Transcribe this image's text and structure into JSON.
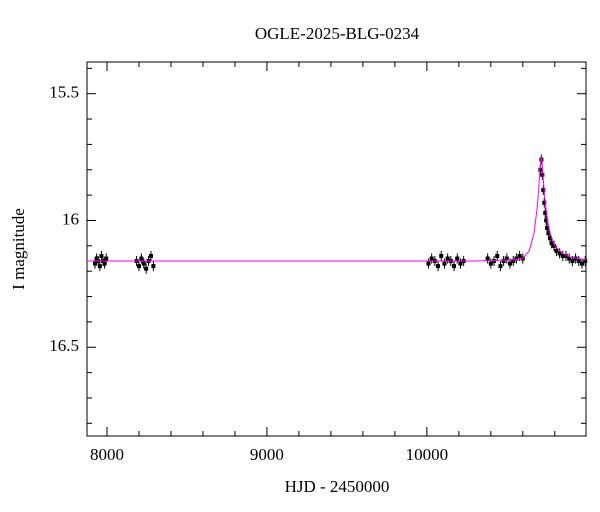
{
  "chart_data": {
    "type": "errorscatter",
    "title": "OGLE-2025-BLG-0234",
    "x_label": "HJD - 2450000",
    "y_label": "I magnitude",
    "xlim": [
      7875,
      10995
    ],
    "ylim": [
      15.375,
      16.85
    ],
    "y_inverted": true,
    "xticks": [
      8000,
      9000,
      10000
    ],
    "yticks": [
      15.5,
      16,
      16.5
    ],
    "xminor": [
      8200,
      8400,
      8600,
      8800,
      9200,
      9400,
      9600,
      9800,
      10200,
      10400,
      10600,
      10800
    ],
    "yminor": [
      15.4,
      15.6,
      15.7,
      15.8,
      15.9,
      16.1,
      16.2,
      16.3,
      16.4,
      16.6,
      16.7,
      16.8
    ],
    "points": {
      "color": "#000000",
      "err": 0.02,
      "x": [
        7925,
        7935,
        7945,
        7955,
        7965,
        7975,
        7985,
        7995,
        8185,
        8200,
        8215,
        8230,
        8245,
        8260,
        8275,
        8290,
        10010,
        10030,
        10050,
        10070,
        10090,
        10110,
        10130,
        10150,
        10170,
        10190,
        10210,
        10230,
        10380,
        10400,
        10420,
        10440,
        10460,
        10480,
        10500,
        10520,
        10540,
        10560,
        10580,
        10600,
        10710,
        10716,
        10722,
        10728,
        10734,
        10740,
        10746,
        10752,
        10760,
        10770,
        10780,
        10795,
        10810,
        10830,
        10850,
        10870,
        10890,
        10910,
        10930,
        10950,
        10970,
        10990
      ],
      "y": [
        16.17,
        16.15,
        16.16,
        16.18,
        16.14,
        16.16,
        16.17,
        16.15,
        16.16,
        16.18,
        16.15,
        16.17,
        16.19,
        16.16,
        16.14,
        16.18,
        16.17,
        16.15,
        16.16,
        16.18,
        16.14,
        16.17,
        16.15,
        16.16,
        16.18,
        16.15,
        16.17,
        16.16,
        16.15,
        16.17,
        16.16,
        16.14,
        16.18,
        16.16,
        16.15,
        16.17,
        16.16,
        16.15,
        16.14,
        16.15,
        15.8,
        15.76,
        15.82,
        15.88,
        15.93,
        15.97,
        16.0,
        16.03,
        16.05,
        16.07,
        16.09,
        16.1,
        16.12,
        16.13,
        16.14,
        16.14,
        16.15,
        16.16,
        16.15,
        16.16,
        16.17,
        16.16
      ]
    },
    "model": {
      "color": "#ff00ff",
      "x": [
        7875,
        8500,
        9500,
        10300,
        10550,
        10600,
        10640,
        10670,
        10690,
        10700,
        10707,
        10714,
        10720,
        10728,
        10740,
        10755,
        10770,
        10800,
        10850,
        10900,
        10995
      ],
      "values": [
        16.16,
        16.16,
        16.16,
        16.16,
        16.155,
        16.15,
        16.12,
        16.05,
        15.95,
        15.87,
        15.8,
        15.75,
        15.77,
        15.84,
        15.93,
        16.0,
        16.05,
        16.1,
        16.13,
        16.145,
        16.155
      ]
    }
  }
}
